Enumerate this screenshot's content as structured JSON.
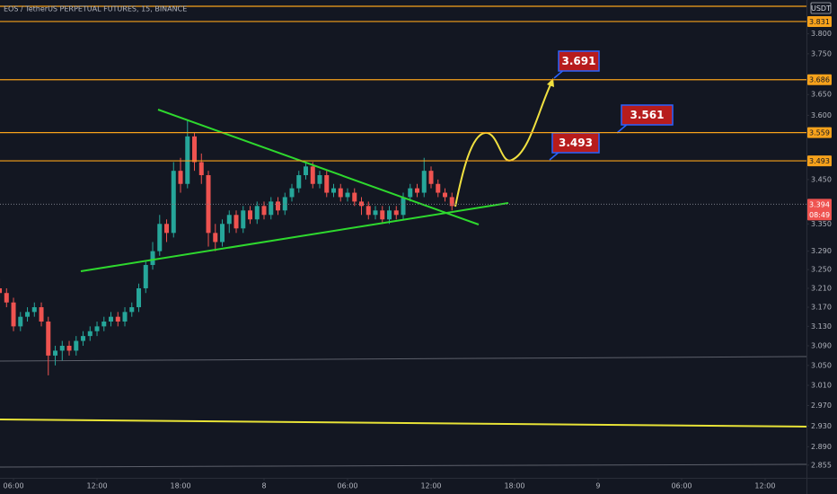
{
  "chart_data": {
    "type": "candlestick",
    "title": "EOS / TetherUS PERPETUAL FUTURES, 15, BINANCE",
    "currency": "USDT",
    "log_scale": true,
    "up_color": "#26a69a",
    "down_color": "#ef5350",
    "xlim": [
      -0.97,
      56.97
    ],
    "ylim": [
      2.831,
      3.886
    ],
    "xticks": [
      {
        "value": 0,
        "label": "06:00"
      },
      {
        "value": 6,
        "label": "12:00"
      },
      {
        "value": 12,
        "label": "18:00"
      },
      {
        "value": 18,
        "label": "8"
      },
      {
        "value": 24,
        "label": "06:00"
      },
      {
        "value": 30,
        "label": "12:00"
      },
      {
        "value": 36,
        "label": "18:00"
      },
      {
        "value": 42,
        "label": "9"
      },
      {
        "value": 48,
        "label": "06:00"
      },
      {
        "value": 54,
        "label": "12:00"
      }
    ],
    "yticks": [
      {
        "value": 3.8,
        "label": "3.800"
      },
      {
        "value": 3.75,
        "label": "3.750"
      },
      {
        "value": 3.65,
        "label": "3.650"
      },
      {
        "value": 3.6,
        "label": "3.600"
      },
      {
        "value": 3.45,
        "label": "3.450"
      },
      {
        "value": 3.35,
        "label": "3.350"
      },
      {
        "value": 3.29,
        "label": "3.290"
      },
      {
        "value": 3.25,
        "label": "3.250"
      },
      {
        "value": 3.21,
        "label": "3.210"
      },
      {
        "value": 3.17,
        "label": "3.170"
      },
      {
        "value": 3.13,
        "label": "3.130"
      },
      {
        "value": 3.09,
        "label": "3.090"
      },
      {
        "value": 3.05,
        "label": "3.050"
      },
      {
        "value": 3.01,
        "label": "3.010"
      },
      {
        "value": 2.97,
        "label": "2.970"
      },
      {
        "value": 2.93,
        "label": "2.930"
      },
      {
        "value": 2.89,
        "label": "2.890"
      },
      {
        "value": 2.855,
        "label": "2.855"
      }
    ],
    "x": [
      -1,
      -0.5,
      0,
      0.5,
      1,
      1.5,
      2,
      2.5,
      3,
      3.5,
      4,
      4.5,
      5,
      5.5,
      6,
      6.5,
      7,
      7.5,
      8,
      8.5,
      9,
      9.5,
      10,
      10.5,
      11,
      11.5,
      12,
      12.5,
      13,
      13.5,
      14,
      14.5,
      15,
      15.5,
      16,
      16.5,
      17,
      17.5,
      18,
      18.5,
      19,
      19.5,
      20,
      20.5,
      21,
      21.5,
      22,
      22.5,
      23,
      23.5,
      24,
      24.5,
      25,
      25.5,
      26,
      26.5,
      27,
      27.5,
      28,
      28.5,
      29,
      29.5,
      30,
      30.5,
      31,
      31.5
    ],
    "open": [
      3.21,
      3.2,
      3.18,
      3.13,
      3.15,
      3.16,
      3.17,
      3.14,
      3.07,
      3.08,
      3.09,
      3.08,
      3.1,
      3.11,
      3.12,
      3.13,
      3.14,
      3.15,
      3.14,
      3.16,
      3.17,
      3.21,
      3.26,
      3.29,
      3.35,
      3.33,
      3.47,
      3.44,
      3.55,
      3.49,
      3.46,
      3.33,
      3.31,
      3.35,
      3.37,
      3.34,
      3.38,
      3.36,
      3.39,
      3.37,
      3.4,
      3.38,
      3.41,
      3.43,
      3.46,
      3.48,
      3.44,
      3.46,
      3.42,
      3.43,
      3.41,
      3.42,
      3.4,
      3.39,
      3.37,
      3.38,
      3.36,
      3.38,
      3.37,
      3.41,
      3.43,
      3.42,
      3.47,
      3.44,
      3.42,
      3.41
    ],
    "high": [
      3.23,
      3.21,
      3.19,
      3.16,
      3.17,
      3.18,
      3.18,
      3.15,
      3.09,
      3.1,
      3.1,
      3.11,
      3.12,
      3.13,
      3.14,
      3.15,
      3.16,
      3.16,
      3.17,
      3.18,
      3.22,
      3.27,
      3.31,
      3.37,
      3.36,
      3.49,
      3.5,
      3.59,
      3.56,
      3.51,
      3.47,
      3.35,
      3.36,
      3.38,
      3.38,
      3.39,
      3.39,
      3.4,
      3.4,
      3.41,
      3.41,
      3.42,
      3.44,
      3.47,
      3.49,
      3.49,
      3.47,
      3.47,
      3.44,
      3.44,
      3.43,
      3.43,
      3.41,
      3.4,
      3.39,
      3.39,
      3.39,
      3.39,
      3.42,
      3.44,
      3.44,
      3.5,
      3.48,
      3.45,
      3.43,
      3.42
    ],
    "low": [
      3.19,
      3.17,
      3.12,
      3.12,
      3.14,
      3.15,
      3.13,
      3.03,
      3.05,
      3.06,
      3.07,
      3.07,
      3.09,
      3.1,
      3.11,
      3.12,
      3.13,
      3.13,
      3.13,
      3.15,
      3.16,
      3.2,
      3.25,
      3.28,
      3.31,
      3.32,
      3.42,
      3.43,
      3.47,
      3.44,
      3.3,
      3.29,
      3.3,
      3.33,
      3.33,
      3.33,
      3.35,
      3.35,
      3.36,
      3.36,
      3.37,
      3.37,
      3.4,
      3.42,
      3.45,
      3.43,
      3.43,
      3.41,
      3.41,
      3.4,
      3.4,
      3.39,
      3.37,
      3.36,
      3.36,
      3.35,
      3.35,
      3.36,
      3.36,
      3.4,
      3.41,
      3.41,
      3.43,
      3.41,
      3.4,
      3.38
    ],
    "close": [
      3.2,
      3.18,
      3.13,
      3.15,
      3.16,
      3.17,
      3.14,
      3.07,
      3.08,
      3.09,
      3.08,
      3.1,
      3.11,
      3.12,
      3.13,
      3.14,
      3.15,
      3.14,
      3.16,
      3.17,
      3.21,
      3.26,
      3.29,
      3.35,
      3.33,
      3.47,
      3.44,
      3.55,
      3.49,
      3.46,
      3.33,
      3.31,
      3.35,
      3.37,
      3.34,
      3.38,
      3.36,
      3.39,
      3.37,
      3.4,
      3.38,
      3.41,
      3.43,
      3.46,
      3.48,
      3.44,
      3.46,
      3.42,
      3.43,
      3.41,
      3.42,
      3.4,
      3.39,
      3.37,
      3.38,
      3.36,
      3.38,
      3.37,
      3.41,
      3.43,
      3.42,
      3.47,
      3.44,
      3.42,
      3.41,
      3.39
    ],
    "levels": [
      {
        "value": 3.831,
        "label": "3.831",
        "color": "#f7a21b"
      },
      {
        "value": 3.686,
        "label": "3.686",
        "color": "#f7a21b"
      },
      {
        "value": 3.559,
        "label": "3.559",
        "color": "#f7a21b"
      },
      {
        "value": 3.493,
        "label": "3.493",
        "color": "#f7a21b"
      }
    ],
    "last_price": {
      "value": 3.394,
      "label": "3.394",
      "color": "#ef5350",
      "countdown": "08:49"
    },
    "annotations": [
      "3.691",
      "3.561",
      "3.493"
    ]
  }
}
